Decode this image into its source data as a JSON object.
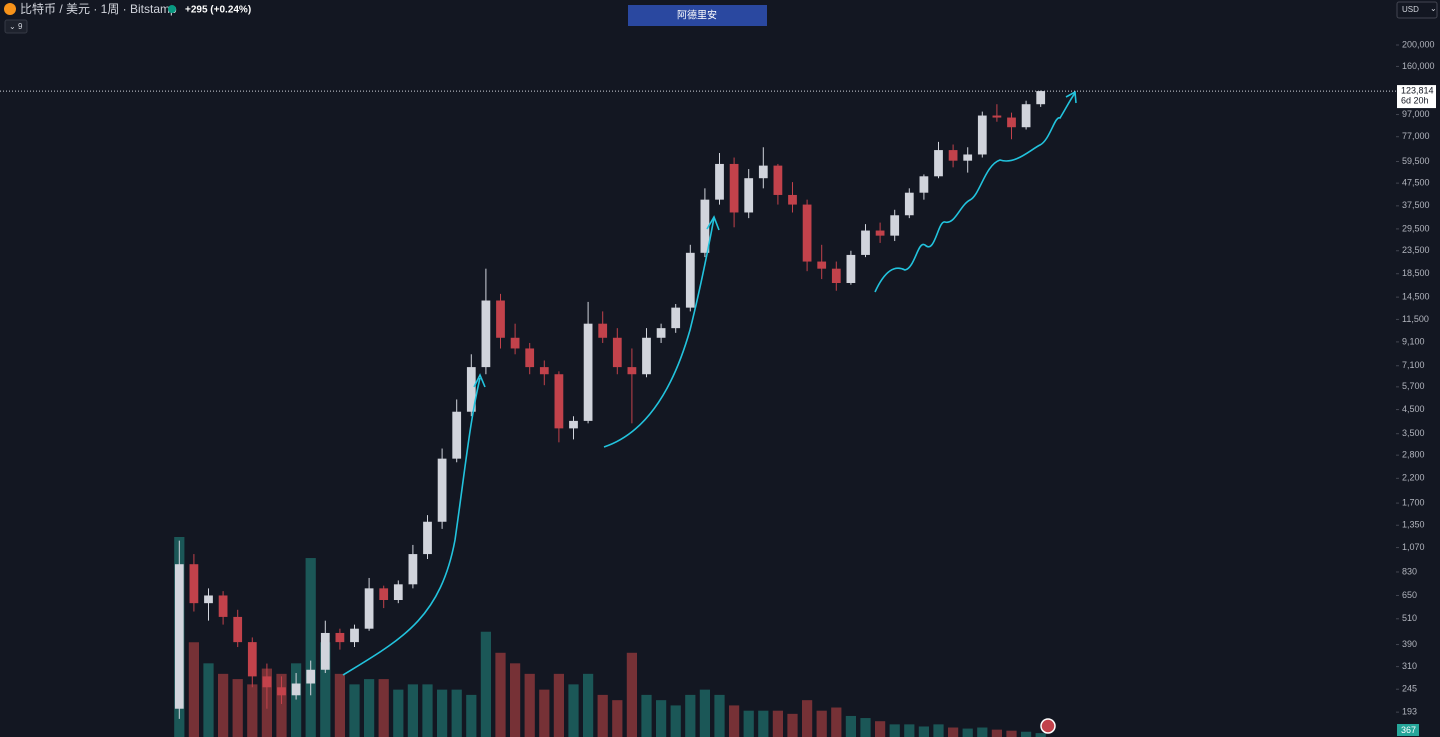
{
  "header": {
    "symbol": "比特币 / 美元 · 1周 · Bitstamp",
    "change": "+295 (+0.24%)",
    "indicator_count": "9",
    "button": "阿德里安",
    "currency": "USD"
  },
  "chart_data": {
    "type": "candlestick",
    "log_scale": true,
    "grid": false,
    "up_color": "#d1d4dc",
    "down_color": "#c2424b",
    "volume_up_color": "#26a69a",
    "volume_down_color": "#ef5350",
    "ylim": [
      149,
      319500
    ],
    "yticks": [
      {
        "value": 200000,
        "label": "200,000"
      },
      {
        "value": 160000,
        "label": "160,000"
      },
      {
        "value": 97000,
        "label": "97,000"
      },
      {
        "value": 77000,
        "label": "77,000"
      },
      {
        "value": 59500,
        "label": "59,500"
      },
      {
        "value": 47500,
        "label": "47,500"
      },
      {
        "value": 37500,
        "label": "37,500"
      },
      {
        "value": 29500,
        "label": "29,500"
      },
      {
        "value": 23500,
        "label": "23,500"
      },
      {
        "value": 18500,
        "label": "18,500"
      },
      {
        "value": 14500,
        "label": "14,500"
      },
      {
        "value": 11500,
        "label": "11,500"
      },
      {
        "value": 9100,
        "label": "9,100"
      },
      {
        "value": 7100,
        "label": "7,100"
      },
      {
        "value": 5700,
        "label": "5,700"
      },
      {
        "value": 4500,
        "label": "4,500"
      },
      {
        "value": 3500,
        "label": "3,500"
      },
      {
        "value": 2800,
        "label": "2,800"
      },
      {
        "value": 2200,
        "label": "2,200"
      },
      {
        "value": 1700,
        "label": "1,700"
      },
      {
        "value": 1350,
        "label": "1,350"
      },
      {
        "value": 1070,
        "label": "1,070"
      },
      830,
      650,
      510,
      390,
      310,
      245,
      193
    ],
    "last_price": {
      "value": 123814,
      "label": "123,814"
    },
    "countdown": "6d 20h",
    "last_volume": {
      "value": 367,
      "label": "367"
    },
    "candles": [
      [
        200,
        1150,
        180,
        900
      ],
      [
        900,
        1000,
        550,
        600
      ],
      [
        600,
        700,
        500,
        650
      ],
      [
        650,
        680,
        480,
        520
      ],
      [
        520,
        560,
        380,
        400
      ],
      [
        400,
        420,
        250,
        280
      ],
      [
        280,
        320,
        200,
        250
      ],
      [
        250,
        280,
        210,
        230
      ],
      [
        230,
        290,
        220,
        260
      ],
      [
        260,
        330,
        230,
        300
      ],
      [
        300,
        500,
        290,
        440
      ],
      [
        440,
        460,
        370,
        400
      ],
      [
        400,
        480,
        380,
        460
      ],
      [
        460,
        780,
        450,
        700
      ],
      [
        700,
        720,
        570,
        620
      ],
      [
        620,
        760,
        600,
        730
      ],
      [
        730,
        1100,
        700,
        1000
      ],
      [
        1000,
        1500,
        950,
        1400
      ],
      [
        1400,
        3000,
        1300,
        2700
      ],
      [
        2700,
        5000,
        2600,
        4400
      ],
      [
        4400,
        8000,
        4200,
        7000
      ],
      [
        7000,
        19500,
        6500,
        14000
      ],
      [
        14000,
        15000,
        8500,
        9500
      ],
      [
        9500,
        11000,
        8000,
        8500
      ],
      [
        8500,
        9000,
        6500,
        7000
      ],
      [
        7000,
        7500,
        5800,
        6500
      ],
      [
        6500,
        6700,
        3200,
        3700
      ],
      [
        3700,
        4200,
        3300,
        4000
      ],
      [
        4000,
        13800,
        3900,
        11000
      ],
      [
        11000,
        12500,
        9000,
        9500
      ],
      [
        9500,
        10500,
        6500,
        7000
      ],
      [
        7000,
        8500,
        3900,
        6500
      ],
      [
        6500,
        10500,
        6300,
        9500
      ],
      [
        9500,
        11000,
        9000,
        10500
      ],
      [
        10500,
        13500,
        10000,
        13000
      ],
      [
        13000,
        25000,
        12500,
        23000
      ],
      [
        23000,
        45000,
        22000,
        40000
      ],
      [
        40000,
        65000,
        38000,
        58000
      ],
      [
        58000,
        62000,
        30000,
        35000
      ],
      [
        35000,
        55000,
        33000,
        50000
      ],
      [
        50000,
        69000,
        45000,
        57000
      ],
      [
        57000,
        58000,
        38000,
        42000
      ],
      [
        42000,
        48000,
        35000,
        38000
      ],
      [
        38000,
        40000,
        19000,
        21000
      ],
      [
        21000,
        25000,
        17500,
        19500
      ],
      [
        19500,
        21000,
        15500,
        16800
      ],
      [
        16800,
        23500,
        16500,
        22500
      ],
      [
        22500,
        31000,
        22000,
        29000
      ],
      [
        29000,
        31500,
        25500,
        27500
      ],
      [
        27500,
        36000,
        26000,
        34000
      ],
      [
        34000,
        45000,
        33000,
        43000
      ],
      [
        43000,
        52000,
        40000,
        51000
      ],
      [
        51000,
        73000,
        50000,
        67000
      ],
      [
        67000,
        71000,
        56000,
        60000
      ],
      [
        60000,
        69000,
        53000,
        64000
      ],
      [
        64000,
        100000,
        62000,
        96000
      ],
      [
        96000,
        108000,
        90000,
        94000
      ],
      [
        94000,
        99000,
        75000,
        85000
      ],
      [
        85000,
        112000,
        83000,
        108000
      ],
      [
        108000,
        124500,
        105000,
        123814
      ]
    ],
    "volume": [
      19000,
      9000,
      7000,
      6000,
      5500,
      5000,
      6500,
      6000,
      7000,
      17000,
      9000,
      6000,
      5000,
      5500,
      5500,
      4500,
      5000,
      5000,
      4500,
      4500,
      4000,
      10000,
      8000,
      7000,
      6000,
      4500,
      6000,
      5000,
      6000,
      4000,
      3500,
      8000,
      4000,
      3500,
      3000,
      4000,
      4500,
      4000,
      3000,
      2500,
      2500,
      2500,
      2200,
      3500,
      2500,
      2800,
      2000,
      1800,
      1500,
      1200,
      1200,
      1000,
      1200,
      900,
      800,
      900,
      700,
      600,
      500,
      367
    ]
  }
}
